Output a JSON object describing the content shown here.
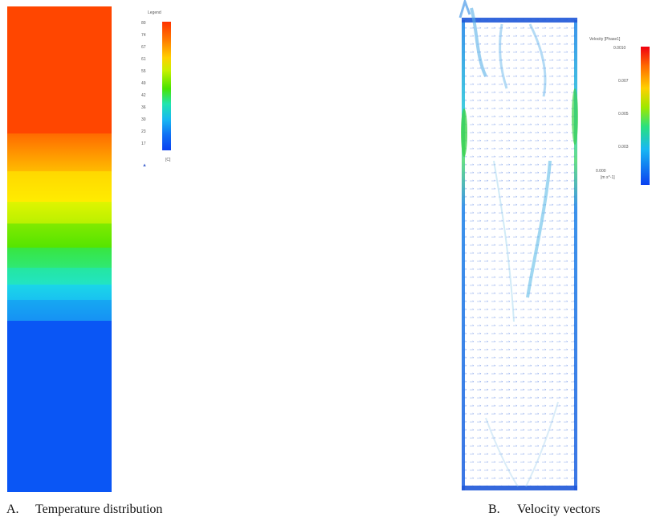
{
  "panel_a": {
    "caption_letter": "A.",
    "caption_text": "Temperature distribution",
    "legend": {
      "title": "Legend",
      "ticks": [
        "80",
        "74",
        "67",
        "61",
        "55",
        "49",
        "42",
        "36",
        "30",
        "23",
        "17"
      ],
      "unit": "[C]"
    },
    "colors": {
      "hot": "#ff4600",
      "orange": "#ff9a00",
      "yellow": "#ffee00",
      "yellow_green": "#c4f200",
      "green": "#55e600",
      "green2": "#2ee85c",
      "cyan_green": "#22e6b2",
      "cyan": "#19c8f0",
      "light_blue": "#16a2f2",
      "blue": "#0a56f5"
    }
  },
  "panel_b": {
    "caption_letter": "B.",
    "caption_text": "Velocity vectors",
    "legend": {
      "title": "Velocity [Phase1]",
      "ticks": [
        "0.0010",
        "0.007",
        "0.005",
        "0.003",
        "0.000"
      ],
      "unit": "[m s^-1]"
    }
  }
}
